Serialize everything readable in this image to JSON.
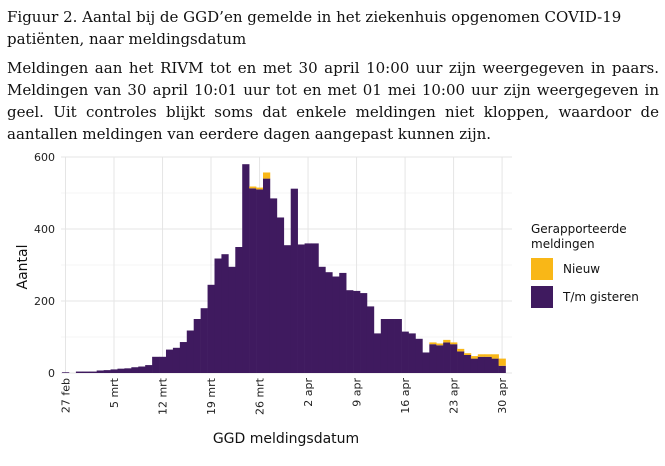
{
  "figure": {
    "caption": "Figuur 2. Aantal bij de GGD’en gemelde in het ziekenhuis opgenomen COVID-19 patiënten, naar meldingsdatum",
    "description": "Meldingen aan het RIVM tot en met 30 april 10:00 uur zijn weergegeven in paars. Meldingen van 30 april 10:01 uur tot en met 01 mei 10:00 uur zijn weergegeven in geel. Uit controles blijkt soms dat enkele meldingen niet kloppen, waardoor de aantallen meldingen van eerdere dagen aangepast kunnen zijn."
  },
  "colors": {
    "new": "#F9B717",
    "prev": "#3F1A5F",
    "grid": "#E5E5E5",
    "text": "#222222"
  },
  "chart_data": {
    "type": "bar",
    "stacked": true,
    "xlabel": "GGD meldingsdatum",
    "ylabel": "Aantal",
    "ylim": [
      0,
      600
    ],
    "yticks": [
      0,
      200,
      400,
      600
    ],
    "xtick_labels": [
      {
        "index": 0,
        "label": "27 feb"
      },
      {
        "index": 7,
        "label": "5 mrt"
      },
      {
        "index": 14,
        "label": "12 mrt"
      },
      {
        "index": 21,
        "label": "19 mrt"
      },
      {
        "index": 28,
        "label": "26 mrt"
      },
      {
        "index": 35,
        "label": "2 apr"
      },
      {
        "index": 42,
        "label": "9 apr"
      },
      {
        "index": 49,
        "label": "16 apr"
      },
      {
        "index": 56,
        "label": "23 apr"
      },
      {
        "index": 63,
        "label": "30 apr"
      }
    ],
    "categories": [
      "27 feb",
      "28 feb",
      "29 feb",
      "1 mrt",
      "2 mrt",
      "3 mrt",
      "4 mrt",
      "5 mrt",
      "6 mrt",
      "7 mrt",
      "8 mrt",
      "9 mrt",
      "10 mrt",
      "11 mrt",
      "12 mrt",
      "13 mrt",
      "14 mrt",
      "15 mrt",
      "16 mrt",
      "17 mrt",
      "18 mrt",
      "19 mrt",
      "20 mrt",
      "21 mrt",
      "22 mrt",
      "23 mrt",
      "24 mrt",
      "25 mrt",
      "26 mrt",
      "27 mrt",
      "28 mrt",
      "29 mrt",
      "30 mrt",
      "31 mrt",
      "1 apr",
      "2 apr",
      "3 apr",
      "4 apr",
      "5 apr",
      "6 apr",
      "7 apr",
      "8 apr",
      "9 apr",
      "10 apr",
      "11 apr",
      "12 apr",
      "13 apr",
      "14 apr",
      "15 apr",
      "16 apr",
      "17 apr",
      "18 apr",
      "19 apr",
      "20 apr",
      "21 apr",
      "22 apr",
      "23 apr",
      "24 apr",
      "25 apr",
      "26 apr",
      "27 apr",
      "28 apr",
      "29 apr",
      "30 apr"
    ],
    "legend_title": "Gerapporteerde meldingen",
    "legend_position": "right",
    "series": [
      {
        "name": "T/m gisteren",
        "color": "#3F1A5F",
        "values": [
          2,
          0,
          4,
          4,
          4,
          7,
          8,
          10,
          12,
          13,
          16,
          18,
          22,
          45,
          45,
          65,
          70,
          86,
          118,
          150,
          180,
          245,
          318,
          330,
          295,
          350,
          580,
          513,
          510,
          540,
          485,
          432,
          355,
          512,
          357,
          360,
          360,
          295,
          280,
          268,
          278,
          230,
          228,
          222,
          185,
          110,
          150,
          150,
          150,
          115,
          110,
          95,
          57,
          80,
          77,
          85,
          80,
          60,
          50,
          40,
          45,
          45,
          40,
          20
        ]
      },
      {
        "name": "Nieuw",
        "color": "#F9B717",
        "values": [
          0,
          0,
          0,
          0,
          0,
          0,
          0,
          0,
          0,
          0,
          0,
          0,
          0,
          0,
          0,
          0,
          0,
          0,
          0,
          0,
          0,
          0,
          0,
          0,
          0,
          0,
          0,
          5,
          5,
          17,
          0,
          0,
          0,
          0,
          0,
          0,
          0,
          0,
          0,
          0,
          0,
          0,
          0,
          0,
          0,
          0,
          0,
          0,
          0,
          0,
          0,
          0,
          0,
          5,
          5,
          7,
          5,
          7,
          5,
          7,
          7,
          7,
          12,
          20
        ]
      }
    ]
  }
}
